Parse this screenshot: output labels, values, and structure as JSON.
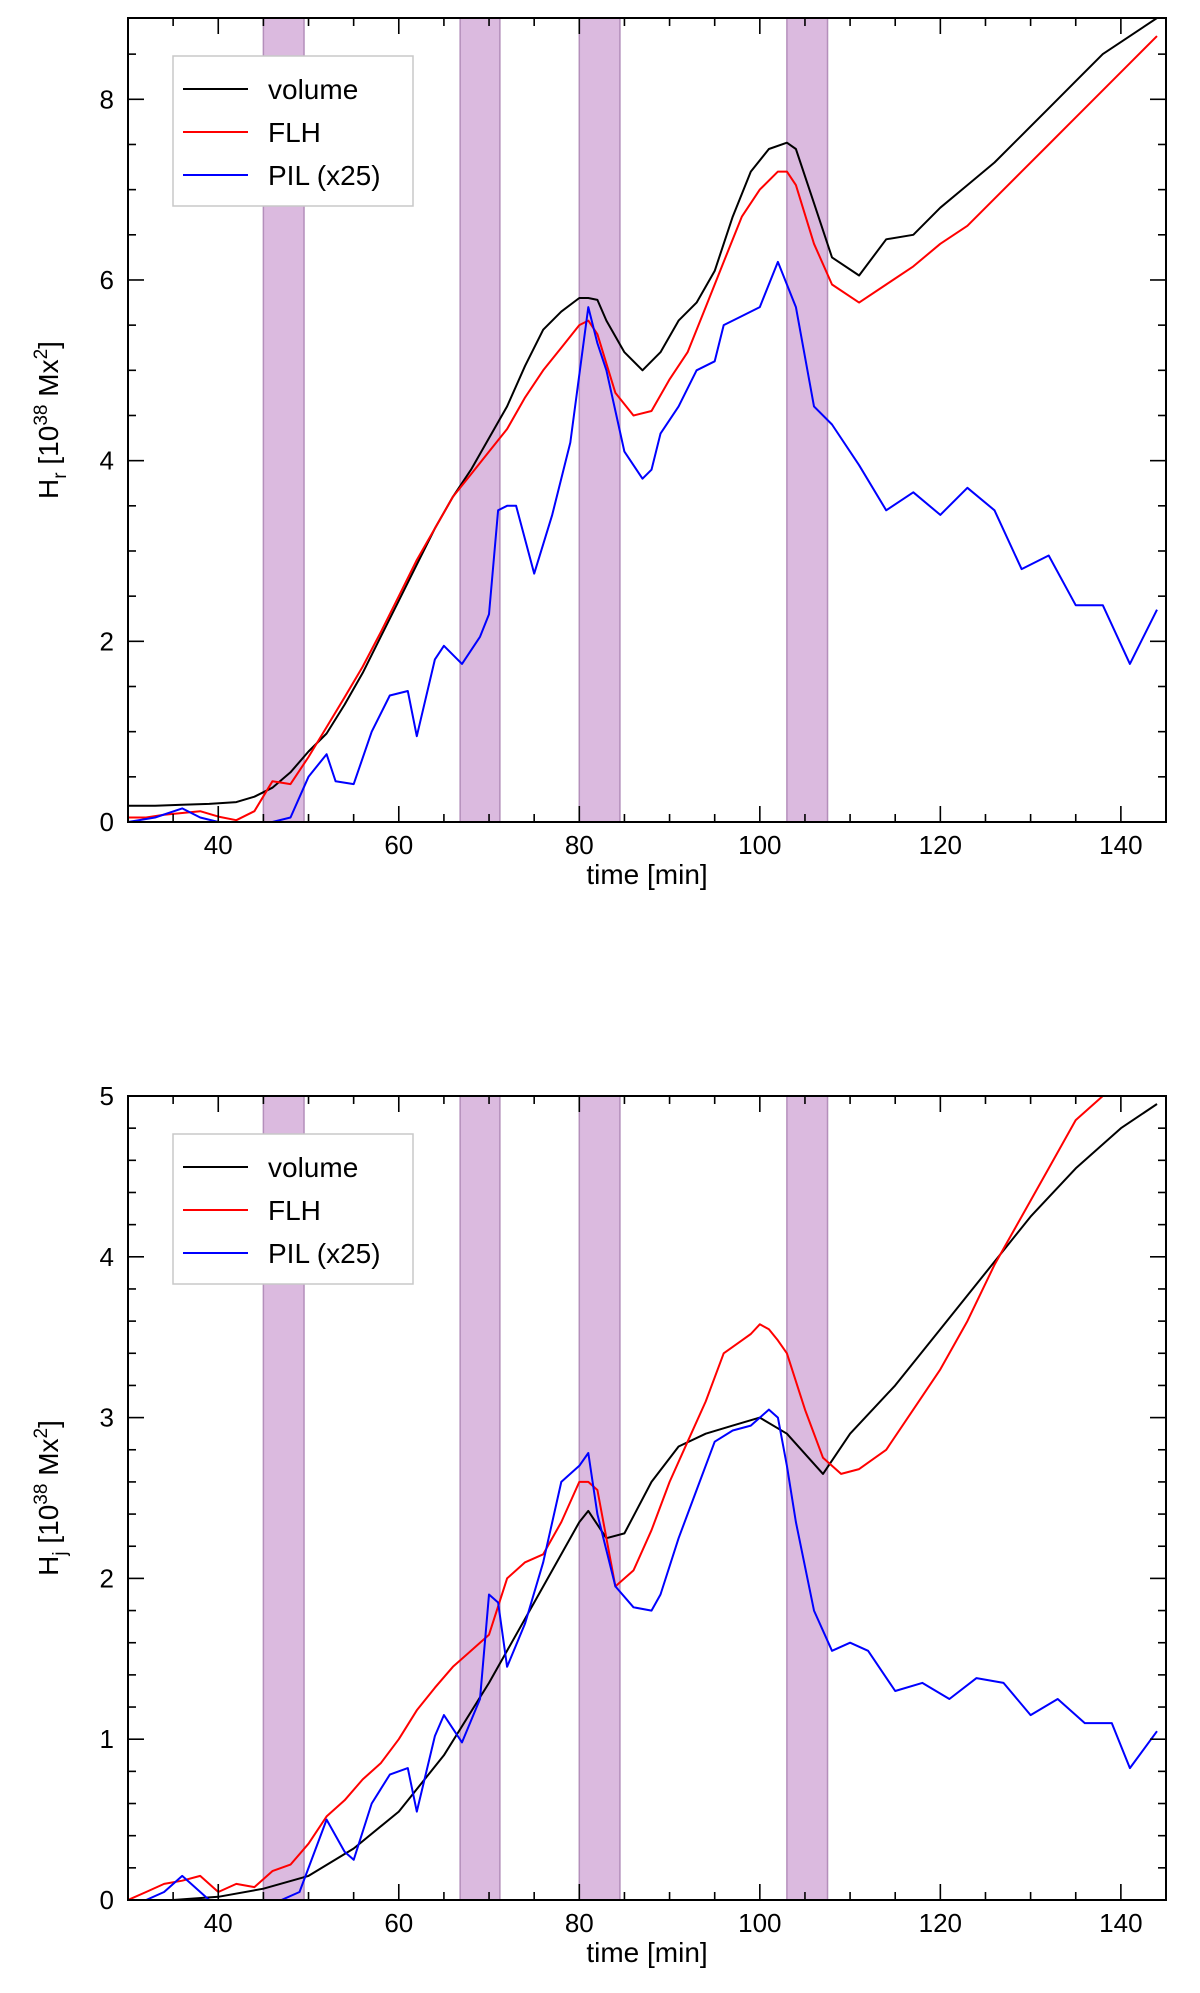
{
  "chart_data": [
    {
      "type": "line",
      "xlabel": "time [min]",
      "ylabel_main": "H",
      "ylabel_sub": "r",
      "ylabel_unit": " [10",
      "ylabel_exp": "38",
      "ylabel_unit2": " Mx",
      "ylabel_exp2": "2",
      "ylabel_close": "]",
      "xlim": [
        30,
        145
      ],
      "ylim": [
        0,
        8.9
      ],
      "xticks": [
        "40",
        "60",
        "80",
        "100",
        "120",
        "140"
      ],
      "xtick_values": [
        40,
        60,
        80,
        100,
        120,
        140
      ],
      "yticks": [
        "0",
        "2",
        "4",
        "6",
        "8"
      ],
      "ytick_values": [
        0,
        2,
        4,
        6,
        8
      ],
      "legend_position": "top-left",
      "shaded_intervals": [
        [
          45,
          49.5
        ],
        [
          66.8,
          71.2
        ],
        [
          80,
          84.5
        ],
        [
          103,
          107.5
        ]
      ],
      "shade_color": "#dbbadf",
      "series": [
        {
          "name": "volume",
          "color": "#000000",
          "x": [
            30,
            33,
            36,
            39,
            42,
            44,
            46,
            48,
            50,
            52,
            54,
            56,
            58,
            60,
            62,
            64,
            66,
            68,
            70,
            72,
            74,
            76,
            78,
            80,
            81,
            82,
            83,
            85,
            87,
            89,
            91,
            93,
            95,
            97,
            99,
            101,
            103,
            104,
            106,
            108,
            111,
            114,
            117,
            120,
            123,
            126,
            129,
            132,
            135,
            138,
            141,
            144
          ],
          "y": [
            0.18,
            0.18,
            0.19,
            0.2,
            0.22,
            0.28,
            0.38,
            0.55,
            0.78,
            0.98,
            1.3,
            1.65,
            2.05,
            2.45,
            2.85,
            3.25,
            3.6,
            3.9,
            4.25,
            4.6,
            5.05,
            5.45,
            5.65,
            5.8,
            5.8,
            5.78,
            5.55,
            5.2,
            5.0,
            5.2,
            5.55,
            5.75,
            6.1,
            6.7,
            7.2,
            7.45,
            7.52,
            7.45,
            6.85,
            6.25,
            6.05,
            6.45,
            6.5,
            6.8,
            7.05,
            7.3,
            7.6,
            7.9,
            8.2,
            8.5,
            8.7,
            8.9
          ]
        },
        {
          "name": "FLH",
          "color": "#ff0000",
          "x": [
            30,
            32,
            34,
            36,
            38,
            40,
            42,
            44,
            46,
            48,
            50,
            52,
            54,
            56,
            58,
            60,
            62,
            64,
            66,
            68,
            70,
            72,
            74,
            76,
            78,
            80,
            81,
            82,
            84,
            86,
            88,
            90,
            92,
            94,
            96,
            98,
            100,
            102,
            103,
            104,
            106,
            108,
            111,
            114,
            117,
            120,
            123,
            126,
            129,
            132,
            135,
            138,
            141,
            144
          ],
          "y": [
            0.05,
            0.05,
            0.08,
            0.1,
            0.12,
            0.06,
            0.02,
            0.12,
            0.45,
            0.42,
            0.72,
            1.05,
            1.38,
            1.72,
            2.1,
            2.5,
            2.9,
            3.25,
            3.6,
            3.85,
            4.1,
            4.35,
            4.7,
            5.0,
            5.25,
            5.5,
            5.55,
            5.4,
            4.75,
            4.5,
            4.55,
            4.9,
            5.2,
            5.7,
            6.2,
            6.7,
            7.0,
            7.2,
            7.2,
            7.05,
            6.4,
            5.95,
            5.75,
            5.95,
            6.15,
            6.4,
            6.6,
            6.9,
            7.2,
            7.5,
            7.8,
            8.1,
            8.4,
            8.7
          ]
        },
        {
          "name": "PIL (x25)",
          "color": "#0000ff",
          "x": [
            30,
            33,
            36,
            38,
            40,
            42,
            44,
            46,
            48,
            50,
            52,
            53,
            55,
            57,
            59,
            61,
            62,
            64,
            65,
            67,
            69,
            70,
            71,
            72,
            73,
            75,
            77,
            79,
            81,
            82,
            83,
            85,
            87,
            88,
            89,
            91,
            93,
            95,
            96,
            98,
            100,
            102,
            104,
            106,
            108,
            111,
            114,
            117,
            120,
            123,
            126,
            129,
            132,
            135,
            138,
            141,
            144
          ],
          "y": [
            0.0,
            0.05,
            0.15,
            0.05,
            0.0,
            0.0,
            0.0,
            0.0,
            0.05,
            0.5,
            0.75,
            0.45,
            0.42,
            1.0,
            1.4,
            1.45,
            0.95,
            1.8,
            1.95,
            1.75,
            2.05,
            2.3,
            3.45,
            3.5,
            3.5,
            2.75,
            3.4,
            4.2,
            5.7,
            5.3,
            5.0,
            4.1,
            3.8,
            3.9,
            4.3,
            4.6,
            5.0,
            5.1,
            5.5,
            5.6,
            5.7,
            6.2,
            5.7,
            4.6,
            4.4,
            3.95,
            3.45,
            3.65,
            3.4,
            3.7,
            3.45,
            2.8,
            2.95,
            2.4,
            2.4,
            1.75,
            2.35
          ]
        }
      ]
    },
    {
      "type": "line",
      "xlabel": "time [min]",
      "ylabel_main": "H",
      "ylabel_sub": "j",
      "ylabel_unit": " [10",
      "ylabel_exp": "38",
      "ylabel_unit2": " Mx",
      "ylabel_exp2": "2",
      "ylabel_close": "]",
      "xlim": [
        30,
        145
      ],
      "ylim": [
        0,
        5
      ],
      "xticks": [
        "40",
        "60",
        "80",
        "100",
        "120",
        "140"
      ],
      "xtick_values": [
        40,
        60,
        80,
        100,
        120,
        140
      ],
      "yticks": [
        "0",
        "1",
        "2",
        "3",
        "4",
        "5"
      ],
      "ytick_values": [
        0,
        1,
        2,
        3,
        4,
        5
      ],
      "legend_position": "top-left",
      "shaded_intervals": [
        [
          45,
          49.5
        ],
        [
          66.8,
          71.2
        ],
        [
          80,
          84.5
        ],
        [
          103,
          107.5
        ]
      ],
      "shade_color": "#dbbadf",
      "series": [
        {
          "name": "volume",
          "color": "#000000",
          "x": [
            30,
            35,
            40,
            45,
            50,
            55,
            60,
            65,
            70,
            75,
            80,
            81,
            83,
            85,
            88,
            91,
            94,
            97,
            100,
            103,
            107,
            110,
            115,
            120,
            125,
            130,
            135,
            140,
            144
          ],
          "y": [
            0.0,
            0.0,
            0.02,
            0.07,
            0.15,
            0.32,
            0.55,
            0.9,
            1.35,
            1.85,
            2.35,
            2.42,
            2.25,
            2.28,
            2.6,
            2.82,
            2.9,
            2.95,
            3.0,
            2.9,
            2.65,
            2.9,
            3.2,
            3.55,
            3.9,
            4.25,
            4.55,
            4.8,
            4.95
          ]
        },
        {
          "name": "FLH",
          "color": "#ff0000",
          "x": [
            30,
            32,
            34,
            36,
            38,
            40,
            42,
            44,
            46,
            48,
            50,
            52,
            54,
            56,
            58,
            60,
            62,
            64,
            66,
            68,
            70,
            72,
            74,
            76,
            78,
            80,
            81,
            82,
            84,
            86,
            88,
            90,
            92,
            94,
            96,
            98,
            99,
            100,
            101,
            102,
            103,
            105,
            107,
            109,
            111,
            114,
            117,
            120,
            123,
            126,
            129,
            132,
            135,
            138,
            141,
            144
          ],
          "y": [
            0.0,
            0.05,
            0.1,
            0.12,
            0.15,
            0.05,
            0.1,
            0.08,
            0.18,
            0.22,
            0.35,
            0.52,
            0.62,
            0.75,
            0.85,
            1.0,
            1.18,
            1.32,
            1.45,
            1.55,
            1.65,
            2.0,
            2.1,
            2.15,
            2.35,
            2.6,
            2.6,
            2.55,
            1.95,
            2.05,
            2.3,
            2.6,
            2.85,
            3.1,
            3.4,
            3.48,
            3.52,
            3.58,
            3.55,
            3.48,
            3.4,
            3.05,
            2.75,
            2.65,
            2.68,
            2.8,
            3.05,
            3.3,
            3.6,
            3.95,
            4.25,
            4.55,
            4.85,
            5.0,
            5.0,
            5.0
          ]
        },
        {
          "name": "PIL (x25)",
          "color": "#0000ff",
          "x": [
            30,
            32,
            34,
            36,
            37,
            39,
            41,
            43,
            45,
            47,
            49,
            52,
            54,
            55,
            57,
            59,
            61,
            62,
            64,
            65,
            67,
            69,
            70,
            71,
            72,
            74,
            76,
            78,
            80,
            81,
            82,
            84,
            86,
            88,
            89,
            91,
            93,
            95,
            97,
            99,
            101,
            102,
            103,
            104,
            106,
            108,
            110,
            112,
            115,
            118,
            121,
            124,
            127,
            130,
            133,
            136,
            139,
            141,
            144
          ],
          "y": [
            0.0,
            0.0,
            0.05,
            0.15,
            0.1,
            0.0,
            0.0,
            0.0,
            0.0,
            0.0,
            0.05,
            0.5,
            0.3,
            0.25,
            0.6,
            0.78,
            0.82,
            0.55,
            1.02,
            1.15,
            0.98,
            1.25,
            1.9,
            1.85,
            1.45,
            1.72,
            2.1,
            2.6,
            2.7,
            2.78,
            2.4,
            1.95,
            1.82,
            1.8,
            1.9,
            2.25,
            2.55,
            2.85,
            2.92,
            2.95,
            3.05,
            3.0,
            2.7,
            2.35,
            1.8,
            1.55,
            1.6,
            1.55,
            1.3,
            1.35,
            1.25,
            1.38,
            1.35,
            1.15,
            1.25,
            1.1,
            1.1,
            0.82,
            1.05
          ]
        }
      ]
    }
  ]
}
